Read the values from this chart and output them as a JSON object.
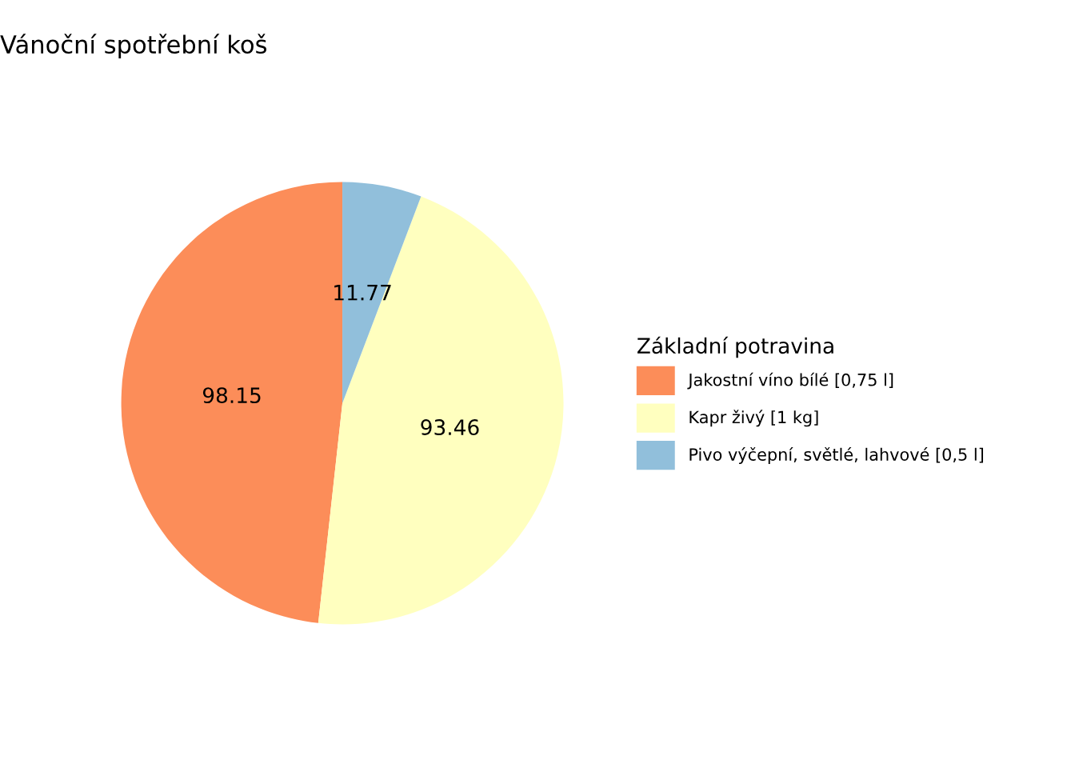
{
  "chart_data": {
    "type": "pie",
    "title": "Vánoční spotřební koš",
    "legend_title": "Základní potravina",
    "categories": [
      "Jakostní víno bílé [0,75 l]",
      "Kapr živý [1 kg]",
      "Pivo výčepní, světlé, lahvové [0,5 l]"
    ],
    "values": [
      98.15,
      93.46,
      11.77
    ],
    "colors": [
      "#fc8d59",
      "#ffffbf",
      "#91bfdb"
    ],
    "data_labels": true,
    "legend": "right"
  }
}
